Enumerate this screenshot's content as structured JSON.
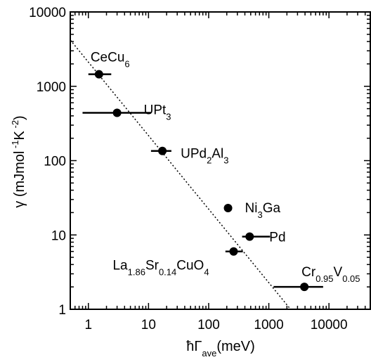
{
  "chart_data": {
    "type": "scatter",
    "title": "",
    "xlabel": "ħΓ_ave(meV)",
    "ylabel": "γ (mJmol⁻¹K⁻²)",
    "x_scale": "log",
    "y_scale": "log",
    "xlim": [
      0.5,
      50000
    ],
    "ylim": [
      1,
      10000
    ],
    "grid": false,
    "x_tick_labels": [
      "1",
      "10",
      "100",
      "1000",
      "10000"
    ],
    "y_tick_labels": [
      "1",
      "10",
      "100",
      "1000",
      "10000"
    ],
    "points": [
      {
        "label": "CeCu6",
        "x": 1.5,
        "y": 1450,
        "xerr": [
          1.0,
          2.4
        ]
      },
      {
        "label": "UPt3",
        "x": 3.0,
        "y": 440,
        "xerr": [
          0.8,
          11.0
        ]
      },
      {
        "label": "UPd2Al3",
        "x": 17,
        "y": 135,
        "xerr": [
          11,
          24
        ]
      },
      {
        "label": "Ni3Ga",
        "x": 210,
        "y": 23,
        "xerr": null
      },
      {
        "label": "Pd",
        "x": 480,
        "y": 9.5,
        "xerr": [
          360,
          1050
        ]
      },
      {
        "label": "La1.86Sr0.14CuO4",
        "x": 260,
        "y": 6,
        "xerr": [
          190,
          370
        ]
      },
      {
        "label": "Cr0.95V0.05",
        "x": 3900,
        "y": 2,
        "xerr": [
          1200,
          8000
        ]
      }
    ],
    "fit_line": {
      "style": "dotted",
      "from": {
        "x": 0.5,
        "y": 4200
      },
      "to": {
        "x": 2300,
        "y": 1
      }
    }
  },
  "labels": [
    {
      "base": "CeCu",
      "sub": "6",
      "rest": ""
    },
    {
      "base": "UPt",
      "sub": "3",
      "rest": ""
    },
    {
      "base": "UPd",
      "sub": "2",
      "rest": "Al",
      "sub2": "3"
    },
    {
      "base": "Ni",
      "sub": "3",
      "rest": "Ga"
    },
    {
      "base": "Pd"
    },
    {
      "base": "La",
      "sub": "1.86",
      "rest": "Sr",
      "sub2": "0.14",
      "rest2": "CuO",
      "sub3": "4"
    },
    {
      "base": "Cr",
      "sub": "0.95",
      "rest": "V",
      "sub2": "0.05"
    }
  ],
  "axis_text": {
    "x_title_main": "ħΓ",
    "x_title_sub": "ave",
    "x_title_rest": "(meV)",
    "y_title_main": "γ (mJmol",
    "y_title_sup1": "-1",
    "y_title_mid": "K",
    "y_title_sup2": "-2",
    "y_title_end": ")"
  }
}
